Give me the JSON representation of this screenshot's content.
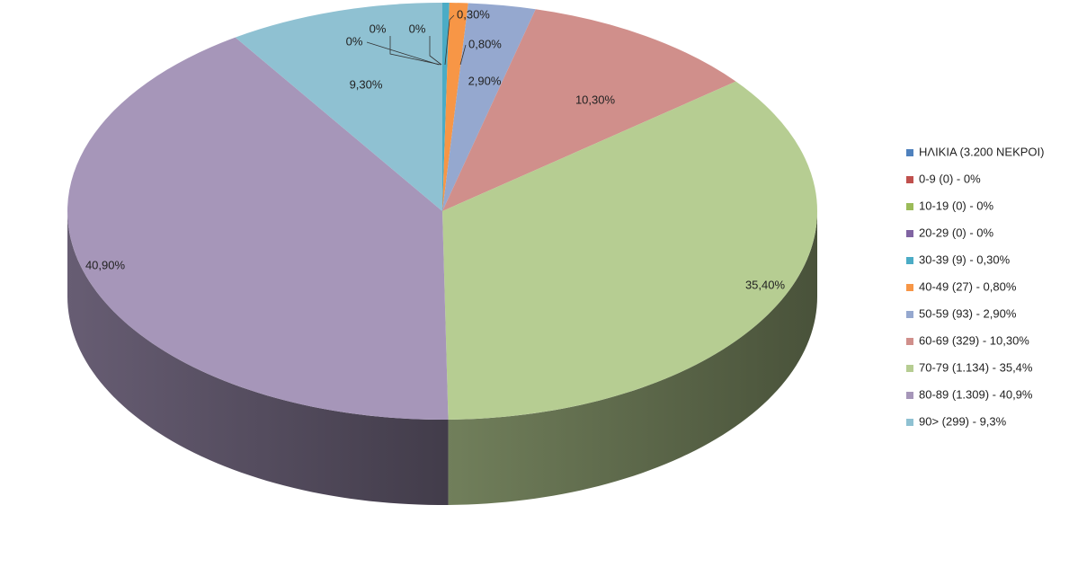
{
  "chart_data": {
    "type": "pie",
    "categories": [
      "ΗΛΙΚΙΑ (3.200 ΝΕΚΡΟΙ)",
      "0-9 (0) - 0%",
      "10-19 (0) - 0%",
      "20-29 (0) - 0%",
      "30-39 (9) - 0,30%",
      "40-49 (27) - 0,80%",
      "50-59 (93) - 2,90%",
      "60-69 (329) - 10,30%",
      "70-79 (1.134) - 35,4%",
      "80-89 (1.309) - 40,9%",
      "90> (299) - 9,3%"
    ],
    "values": [
      null,
      0,
      0,
      0,
      0.3,
      0.8,
      2.9,
      10.3,
      35.4,
      40.9,
      9.3
    ],
    "value_labels": [
      null,
      "0%",
      "0%",
      "0%",
      "0,30%",
      "0,80%",
      "2,90%",
      "10,30%",
      "35,40%",
      "40,90%",
      "9,30%"
    ],
    "colors": [
      "#4f81bd",
      "#c0504d",
      "#9bbb59",
      "#8064a2",
      "#4bacc6",
      "#f79646",
      "#95a8cf",
      "#d08f8b",
      "#b6cd92",
      "#a696b9",
      "#8fc1d2"
    ],
    "legend": "right"
  }
}
